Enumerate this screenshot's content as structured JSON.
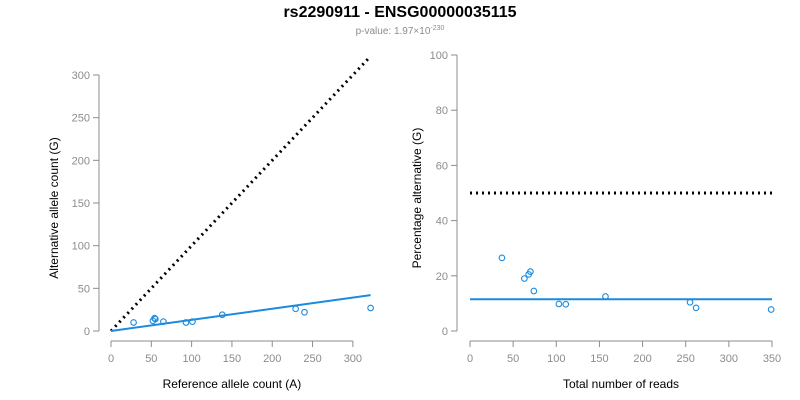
{
  "header": {
    "title": "rs2290911 - ENSG00000035115",
    "pvalue_prefix": "p-value: 1.97×10",
    "pvalue_exponent": "-230"
  },
  "colors": {
    "points": "#1a8be0",
    "fit": "#1a8be0",
    "reference": "#000000",
    "axis": "#8c8c8c"
  },
  "chart_data": [
    {
      "type": "scatter",
      "xlabel": "Reference allele count (A)",
      "ylabel": "Alternative allele count (G)",
      "xlim": [
        0,
        320
      ],
      "ylim": [
        0,
        300
      ],
      "xticks": [
        0,
        50,
        100,
        150,
        200,
        250,
        300
      ],
      "yticks": [
        0,
        50,
        100,
        150,
        200,
        250,
        300
      ],
      "points": [
        {
          "x": 28,
          "y": 10
        },
        {
          "x": 52,
          "y": 12
        },
        {
          "x": 54,
          "y": 15
        },
        {
          "x": 55,
          "y": 14
        },
        {
          "x": 65,
          "y": 11
        },
        {
          "x": 93,
          "y": 10
        },
        {
          "x": 101,
          "y": 11
        },
        {
          "x": 138,
          "y": 19
        },
        {
          "x": 229,
          "y": 26
        },
        {
          "x": 240,
          "y": 22
        },
        {
          "x": 322,
          "y": 27
        }
      ],
      "fit_line": {
        "x": [
          0,
          322
        ],
        "y": [
          0,
          42
        ]
      },
      "reference_line": {
        "x": [
          0,
          322
        ],
        "y": [
          0,
          322
        ]
      },
      "grid": false
    },
    {
      "type": "scatter",
      "xlabel": "Total number of reads",
      "ylabel": "Percentage alternative (G)",
      "xlim": [
        0,
        350
      ],
      "ylim": [
        0,
        100
      ],
      "xticks": [
        0,
        50,
        100,
        150,
        200,
        250,
        300,
        350
      ],
      "yticks": [
        0,
        20,
        40,
        60,
        80,
        100
      ],
      "points": [
        {
          "x": 37,
          "y": 26.5
        },
        {
          "x": 63,
          "y": 19
        },
        {
          "x": 68,
          "y": 20.5
        },
        {
          "x": 70,
          "y": 21.5
        },
        {
          "x": 74,
          "y": 14.5
        },
        {
          "x": 103,
          "y": 9.8
        },
        {
          "x": 111,
          "y": 9.7
        },
        {
          "x": 157,
          "y": 12.5
        },
        {
          "x": 255,
          "y": 10.4
        },
        {
          "x": 262,
          "y": 8.4
        },
        {
          "x": 349,
          "y": 7.8
        }
      ],
      "fit_line": {
        "x": [
          0,
          350
        ],
        "y": [
          11.5,
          11.5
        ]
      },
      "reference_line": {
        "x": [
          0,
          350
        ],
        "y": [
          50,
          50
        ]
      },
      "grid": false
    }
  ]
}
